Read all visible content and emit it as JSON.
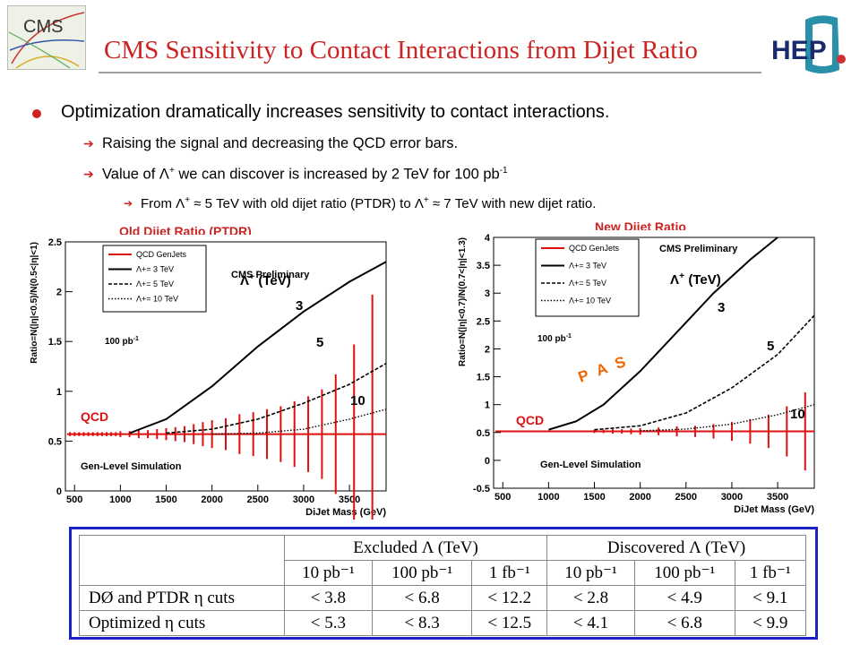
{
  "header": {
    "title": "CMS Sensitivity to Contact Interactions from Dijet Ratio",
    "logo_left_text": "CMS",
    "logo_right_text": "HEP"
  },
  "bullets": {
    "b1": "Optimization dramatically increases sensitivity to contact interactions.",
    "b2": "Raising the signal and decreasing the QCD error bars.",
    "b3_pre": "Value of Λ",
    "b3_sup": "+",
    "b3_mid": " we can discover is increased by 2 TeV for 100 pb",
    "b3_sup2": "-1",
    "b4_a": "From Λ",
    "b4_sup1": "+",
    "b4_b": " ≈ 5 TeV with old dijet ratio (PTDR) to Λ",
    "b4_sup2": "+",
    "b4_c": " ≈ 7 TeV with new dijet ratio."
  },
  "plots": {
    "left_title": "Old Dijet Ratio (PTDR)",
    "right_title": "New Dijet Ratio"
  },
  "chart_data": [
    {
      "type": "line",
      "title": "Old Dijet Ratio (PTDR)",
      "xlabel": "DiJet Mass (GeV)",
      "ylabel": "Ratio=N(|η|<0.5)/N(0.5<|η|<1)",
      "xlim": [
        400,
        3900
      ],
      "ylim": [
        0,
        2.5
      ],
      "xticks": [
        500,
        1000,
        1500,
        2000,
        2500,
        3000,
        3500
      ],
      "yticks": [
        0,
        0.5,
        1,
        1.5,
        2,
        2.5
      ],
      "legend": [
        "QCD GenJets",
        "Λ+= 3 TeV",
        "Λ+= 5 TeV",
        "Λ+= 10 TeV"
      ],
      "legend_position": "top-left",
      "annotations": {
        "prelim": "CMS Preliminary",
        "lumi": "100 pb",
        "lumi_sup": "-1",
        "sim": "Gen-Level Simulation",
        "lambda": "Λ",
        "lambda_sup": "+",
        "tev": "(TeV)",
        "qcd": "QCD",
        "l3": "3",
        "l5": "5",
        "l10": "10"
      },
      "qcd_level": 0.57,
      "series": [
        {
          "name": "Λ+= 3 TeV",
          "x": [
            1100,
            1500,
            2000,
            2500,
            3000,
            3500,
            3900
          ],
          "y": [
            0.58,
            0.72,
            1.05,
            1.45,
            1.8,
            2.1,
            2.3
          ]
        },
        {
          "name": "Λ+= 5 TeV",
          "x": [
            1500,
            2000,
            2500,
            3000,
            3500,
            3900
          ],
          "y": [
            0.58,
            0.62,
            0.72,
            0.88,
            1.07,
            1.28
          ]
        },
        {
          "name": "Λ+= 10 TeV",
          "x": [
            2000,
            2500,
            3000,
            3500,
            3900
          ],
          "y": [
            0.57,
            0.58,
            0.62,
            0.72,
            0.82
          ]
        }
      ],
      "errors": {
        "x": [
          450,
          500,
          550,
          600,
          650,
          700,
          750,
          800,
          850,
          900,
          950,
          1000,
          1100,
          1200,
          1300,
          1400,
          1500,
          1600,
          1700,
          1800,
          1900,
          2000,
          2150,
          2300,
          2450,
          2600,
          2750,
          2900,
          3050,
          3200,
          3350,
          3550,
          3750
        ],
        "err": [
          0.02,
          0.02,
          0.02,
          0.02,
          0.02,
          0.02,
          0.02,
          0.02,
          0.02,
          0.02,
          0.02,
          0.03,
          0.03,
          0.04,
          0.04,
          0.05,
          0.06,
          0.07,
          0.08,
          0.1,
          0.12,
          0.14,
          0.16,
          0.2,
          0.22,
          0.25,
          0.28,
          0.33,
          0.38,
          0.45,
          0.6,
          0.9,
          1.4
        ]
      }
    },
    {
      "type": "line",
      "title": "New Dijet Ratio",
      "xlabel": "DiJet Mass (GeV)",
      "ylabel": "Ratio=N(|η|<0.7)/N(0.7<|η|<1.3)",
      "xlim": [
        400,
        3900
      ],
      "ylim": [
        -0.5,
        4
      ],
      "xticks": [
        500,
        1000,
        1500,
        2000,
        2500,
        3000,
        3500
      ],
      "yticks": [
        -0.5,
        0,
        0.5,
        1,
        1.5,
        2,
        2.5,
        3,
        3.5,
        4
      ],
      "legend": [
        "QCD GenJets",
        "Λ+= 3 TeV",
        "Λ+= 5 TeV",
        "Λ+= 10 TeV"
      ],
      "legend_position": "top-left",
      "annotations": {
        "prelim": "CMS Preliminary",
        "lumi": "100 pb",
        "lumi_sup": "-1",
        "sim": "Gen-Level Simulation",
        "lambda": "Λ",
        "lambda_sup": "+",
        "tev": "(TeV)",
        "qcd": "QCD",
        "pas": "P A S",
        "l3": "3",
        "l5": "5",
        "l10": "10"
      },
      "qcd_level": 0.52,
      "series": [
        {
          "name": "Λ+= 3 TeV",
          "x": [
            1000,
            1300,
            1600,
            2000,
            2400,
            2800,
            3200,
            3500
          ],
          "y": [
            0.55,
            0.7,
            1.0,
            1.6,
            2.3,
            3.0,
            3.6,
            4.0
          ]
        },
        {
          "name": "Λ+= 5 TeV",
          "x": [
            1500,
            2000,
            2500,
            3000,
            3500,
            3900
          ],
          "y": [
            0.55,
            0.62,
            0.85,
            1.3,
            1.9,
            2.6
          ]
        },
        {
          "name": "Λ+= 10 TeV",
          "x": [
            2000,
            2500,
            3000,
            3500,
            3900
          ],
          "y": [
            0.53,
            0.56,
            0.65,
            0.82,
            1.0
          ]
        }
      ],
      "errors": {
        "x": [
          1500,
          1600,
          1700,
          1800,
          1900,
          2000,
          2200,
          2400,
          2600,
          2800,
          3000,
          3200,
          3400,
          3600,
          3800
        ],
        "err": [
          0.03,
          0.03,
          0.04,
          0.04,
          0.05,
          0.06,
          0.07,
          0.09,
          0.1,
          0.13,
          0.17,
          0.22,
          0.3,
          0.45,
          0.7
        ]
      }
    }
  ],
  "table": {
    "header1": [
      "",
      "Excluded Λ (TeV)",
      "Discovered Λ (TeV)"
    ],
    "header2": [
      "",
      "10 pb⁻¹",
      "100 pb⁻¹",
      "1 fb⁻¹",
      "10 pb⁻¹",
      "100 pb⁻¹",
      "1 fb⁻¹"
    ],
    "rows": [
      [
        "DØ and PTDR η cuts",
        "< 3.8",
        "< 6.8",
        "< 12.2",
        "< 2.8",
        "< 4.9",
        "< 9.1"
      ],
      [
        "Optimized η cuts",
        "< 5.3",
        "< 8.3",
        "< 12.5",
        "< 4.1",
        "< 6.8",
        "< 9.9"
      ]
    ]
  },
  "colors": {
    "accent": "#cc2222",
    "table_border": "#1a22c8"
  }
}
